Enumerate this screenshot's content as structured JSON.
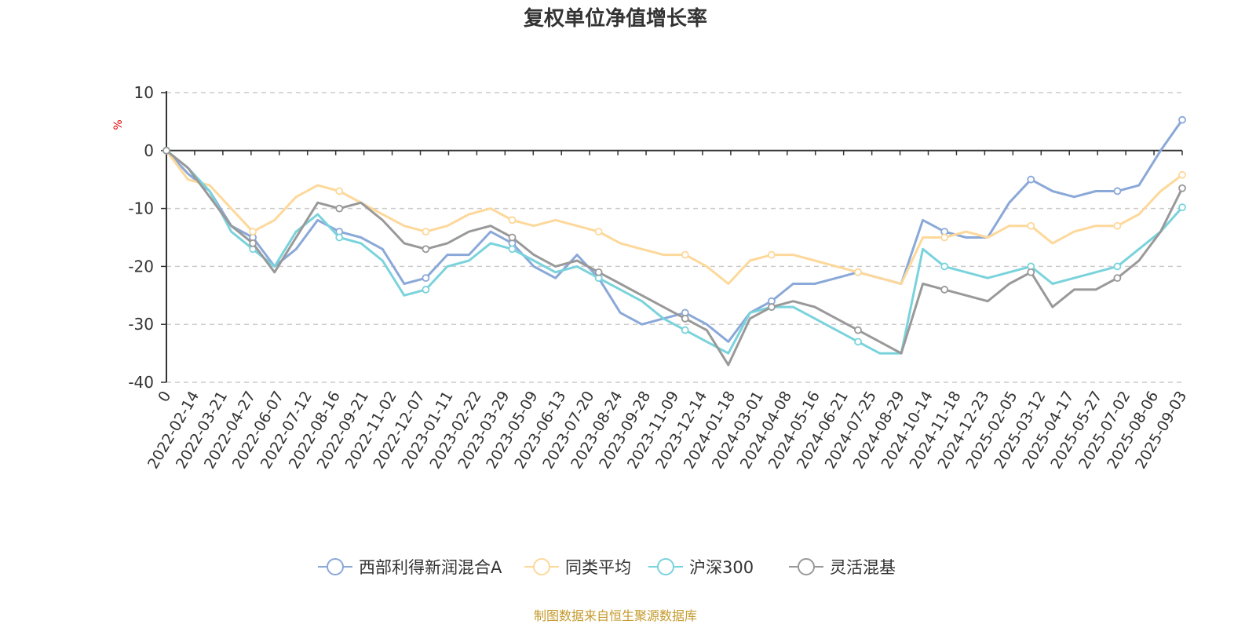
{
  "chart_data": {
    "type": "line",
    "title": "复权单位净值增长率",
    "ylabel": "%",
    "ylim": [
      -40,
      10
    ],
    "yticks": [
      10,
      0,
      -10,
      -20,
      -30,
      -40
    ],
    "grid": true,
    "legend_position": "bottom",
    "x_ticks": [
      "0",
      "2022-02-14",
      "2022-03-21",
      "2022-04-27",
      "2022-06-07",
      "2022-07-12",
      "2022-08-16",
      "2022-09-21",
      "2022-11-02",
      "2022-12-07",
      "2023-01-11",
      "2023-02-22",
      "2023-03-29",
      "2023-05-09",
      "2023-06-13",
      "2023-07-20",
      "2023-08-24",
      "2023-09-28",
      "2023-11-09",
      "2023-12-14",
      "2024-01-18",
      "2024-03-01",
      "2024-04-08",
      "2024-05-16",
      "2024-06-21",
      "2024-07-25",
      "2024-08-29",
      "2024-10-14",
      "2024-11-18",
      "2024-12-23",
      "2025-02-05",
      "2025-03-12",
      "2025-04-17",
      "2025-05-27",
      "2025-07-02",
      "2025-08-06",
      "2025-09-03"
    ],
    "series": [
      {
        "name": "西部利得新润混合A",
        "color": "#8aa8d8",
        "values": [
          0,
          -4,
          -7,
          -13,
          -15,
          -20,
          -17,
          -12,
          -14,
          -15,
          -17,
          -23,
          -22,
          -18,
          -18,
          -14,
          -16,
          -20,
          -22,
          -18,
          -22,
          -28,
          -30,
          -29,
          -28,
          -30,
          -33,
          -28,
          -26,
          -23,
          -23,
          -22,
          -21,
          -22,
          -23,
          -12,
          -14,
          -15,
          -15,
          -9,
          -5,
          -7,
          -8,
          -7,
          -7,
          -6,
          0,
          5.3
        ]
      },
      {
        "name": "同类平均",
        "color": "#fdd89a",
        "values": [
          0,
          -5,
          -6,
          -10,
          -14,
          -12,
          -8,
          -6,
          -7,
          -9,
          -11,
          -13,
          -14,
          -13,
          -11,
          -10,
          -12,
          -13,
          -12,
          -13,
          -14,
          -16,
          -17,
          -18,
          -18,
          -20,
          -23,
          -19,
          -18,
          -18,
          -19,
          -20,
          -21,
          -22,
          -23,
          -15,
          -15,
          -14,
          -15,
          -13,
          -13,
          -16,
          -14,
          -13,
          -13,
          -11,
          -7,
          -4.2
        ]
      },
      {
        "name": "沪深300",
        "color": "#7ad3dc",
        "values": [
          0,
          -3,
          -7,
          -14,
          -17,
          -20,
          -14,
          -11,
          -15,
          -16,
          -19,
          -25,
          -24,
          -20,
          -19,
          -16,
          -17,
          -19,
          -21,
          -20,
          -22,
          -24,
          -26,
          -29,
          -31,
          -33,
          -35,
          -28,
          -27,
          -27,
          -29,
          -31,
          -33,
          -35,
          -35,
          -17,
          -20,
          -21,
          -22,
          -21,
          -20,
          -23,
          -22,
          -21,
          -20,
          -17,
          -14,
          -9.8
        ]
      },
      {
        "name": "灵活混基",
        "color": "#999999",
        "values": [
          0,
          -3,
          -8,
          -13,
          -16,
          -21,
          -15,
          -9,
          -10,
          -9,
          -12,
          -16,
          -17,
          -16,
          -14,
          -13,
          -15,
          -18,
          -20,
          -19,
          -21,
          -23,
          -25,
          -27,
          -29,
          -31,
          -37,
          -29,
          -27,
          -26,
          -27,
          -29,
          -31,
          -33,
          -35,
          -23,
          -24,
          -25,
          -26,
          -23,
          -21,
          -27,
          -24,
          -24,
          -22,
          -19,
          -14,
          -6.5
        ]
      }
    ]
  },
  "source_text": "制图数据来自恒生聚源数据库"
}
